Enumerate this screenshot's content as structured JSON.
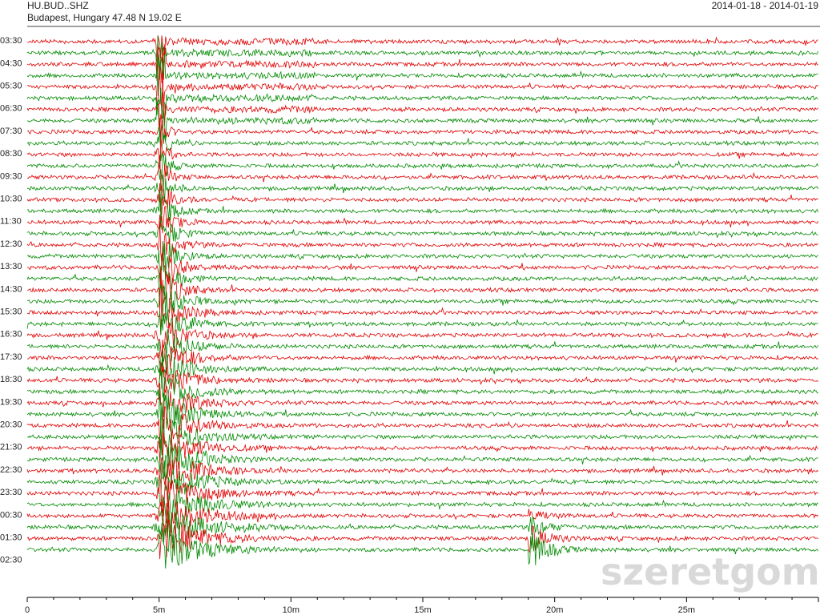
{
  "header": {
    "station": "HU.BUD..SHZ",
    "location": "Budapest, Hungary  47.48 N 19.02 E",
    "date_range": "2014-01-18 - 2014-01-19"
  },
  "watermark": "szeretgom",
  "colors": {
    "red": "#e00000",
    "green": "#008a00",
    "axis": "#000000"
  },
  "chart_data": {
    "type": "line",
    "subtype": "helicorder",
    "x_unit": "minutes",
    "xlim": [
      0,
      30
    ],
    "x_ticks": [
      {
        "value": 0,
        "label": "0"
      },
      {
        "value": 5,
        "label": "5m"
      },
      {
        "value": 10,
        "label": "10m"
      },
      {
        "value": 15,
        "label": "15m"
      },
      {
        "value": 20,
        "label": "20m"
      },
      {
        "value": 25,
        "label": "25m"
      }
    ],
    "row_interval_minutes": 30,
    "row_count": 46,
    "row_colors_alternate": [
      "red",
      "green"
    ],
    "row_labels": [
      {
        "row": 1,
        "label": "03:30"
      },
      {
        "row": 3,
        "label": "04:30"
      },
      {
        "row": 5,
        "label": "05:30"
      },
      {
        "row": 7,
        "label": "06:30"
      },
      {
        "row": 9,
        "label": "07:30"
      },
      {
        "row": 11,
        "label": "08:30"
      },
      {
        "row": 13,
        "label": "09:30"
      },
      {
        "row": 15,
        "label": "10:30"
      },
      {
        "row": 17,
        "label": "11:30"
      },
      {
        "row": 19,
        "label": "12:30"
      },
      {
        "row": 21,
        "label": "13:30"
      },
      {
        "row": 23,
        "label": "14:30"
      },
      {
        "row": 25,
        "label": "15:30"
      },
      {
        "row": 27,
        "label": "16:30"
      },
      {
        "row": 29,
        "label": "17:30"
      },
      {
        "row": 31,
        "label": "18:30"
      },
      {
        "row": 33,
        "label": "19:30"
      },
      {
        "row": 35,
        "label": "20:30"
      },
      {
        "row": 37,
        "label": "21:30"
      },
      {
        "row": 39,
        "label": "22:30"
      },
      {
        "row": 41,
        "label": "23:30"
      },
      {
        "row": 43,
        "label": "00:30"
      },
      {
        "row": 45,
        "label": "01:30"
      },
      {
        "row": 47,
        "label": "02:30"
      }
    ],
    "events": [
      {
        "row_start": 0,
        "row_end": 46,
        "minute": 5.0,
        "description": "large earthquake signal saturating traces"
      },
      {
        "row_start": 42,
        "row_end": 46,
        "minute": 19.0,
        "description": "aftershock / second event"
      }
    ]
  }
}
